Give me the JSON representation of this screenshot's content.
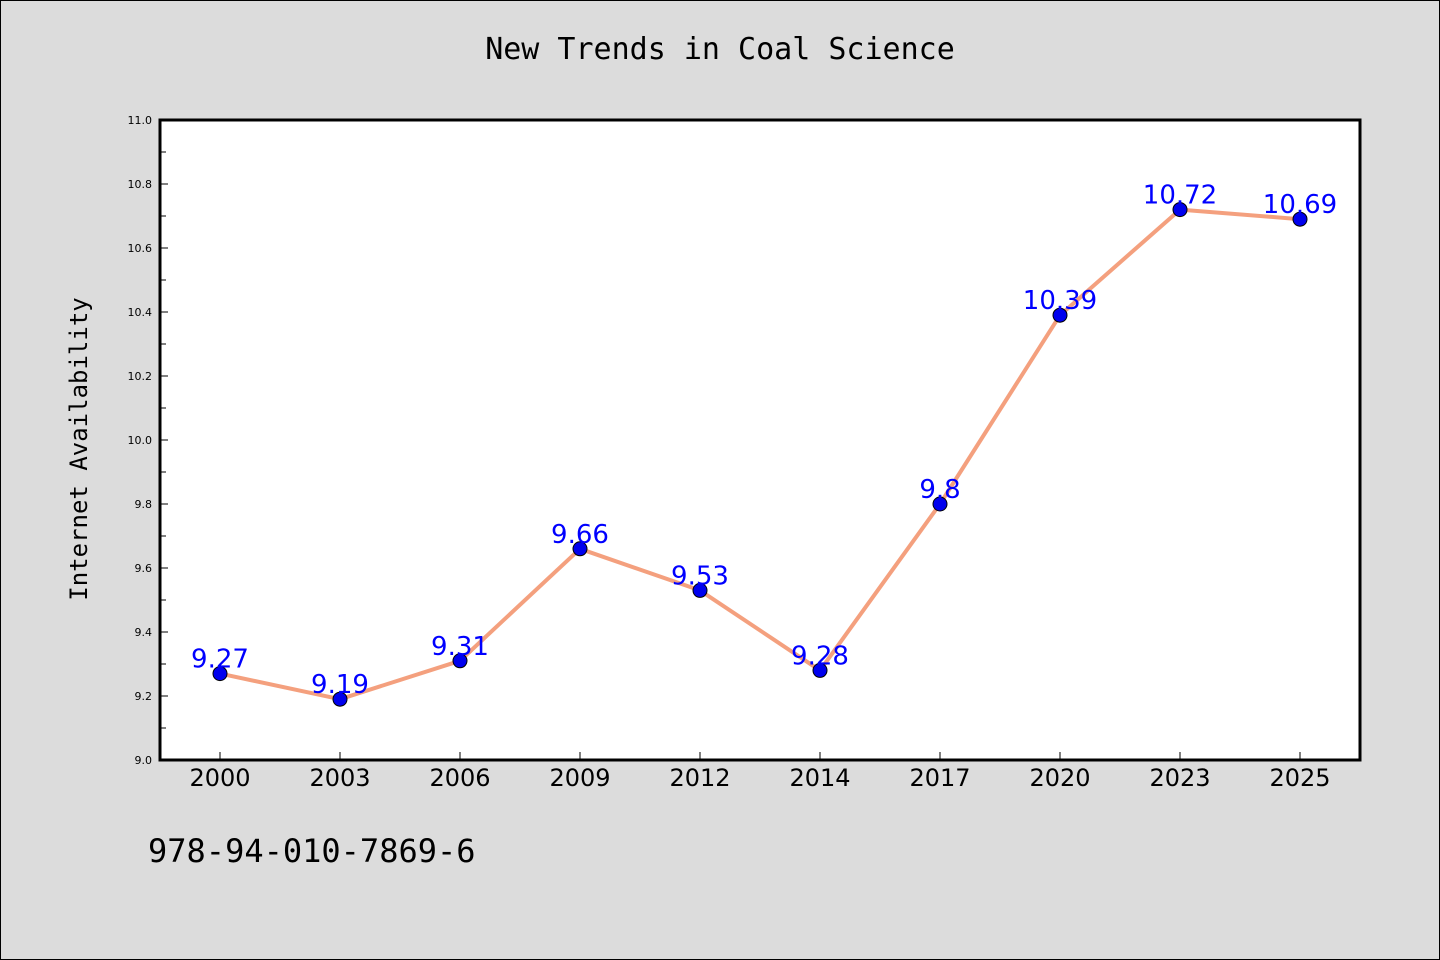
{
  "chart_data": {
    "type": "line",
    "title": "New Trends in Coal Science",
    "xlabel": "",
    "ylabel": "Internet Availability",
    "categories": [
      "2000",
      "2003",
      "2006",
      "2009",
      "2012",
      "2014",
      "2017",
      "2020",
      "2023",
      "2025"
    ],
    "series": [
      {
        "values": [
          9.27,
          9.19,
          9.31,
          9.66,
          9.53,
          9.28,
          9.8,
          10.39,
          10.72,
          10.69
        ],
        "labels": [
          "9.27",
          "9.19",
          "9.31",
          "9.66",
          "9.53",
          "9.28",
          "9.8",
          "10.39",
          "10.72",
          "10.69"
        ],
        "line_color": "#f4a07e",
        "marker_color": "#0000ee",
        "label_color": "#0000ff"
      }
    ],
    "ylim": [
      9.0,
      11.0
    ],
    "yticks": [
      "9.0",
      "9.2",
      "9.4",
      "9.6",
      "9.8",
      "10.0",
      "10.2",
      "10.4",
      "10.6",
      "10.8",
      "11.0"
    ],
    "grid": false,
    "legend": "none"
  },
  "footer": {
    "isbn": "978-94-010-7869-6"
  }
}
